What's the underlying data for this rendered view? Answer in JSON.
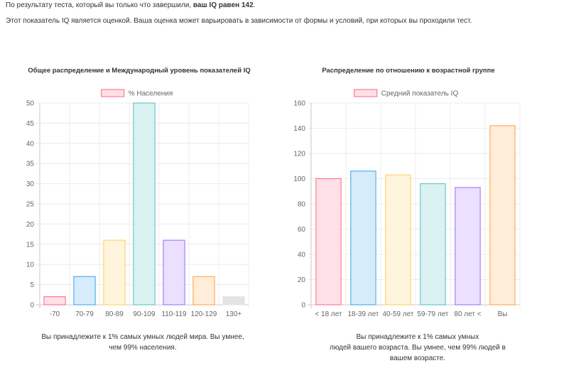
{
  "intro": {
    "line1_prefix": "По результату теста, который вы только что завершили, ",
    "line1_bold": "ваш IQ равен 142",
    "line1_suffix": ".",
    "line2": "Этот показатель IQ является оценкой. Ваша оценка может варьировать в зависимости от формы и условий, при которых вы проходили тест."
  },
  "captions": {
    "world": "Вы принадлежите к 1% самых умных людей мира. Вы умнее, чем 99% населения.",
    "age_line1": "Вы принадлежите к 1% самых умных",
    "age_line2": "людей вашего возраста. Вы умнее, чем 99% людей в",
    "age_line3": "вашем возрасте."
  },
  "chart_data": [
    {
      "type": "bar",
      "title": "Общее распределение и Международный уровень показателей IQ",
      "legend": "% Населения",
      "legend_position": "top",
      "categories": [
        "-70",
        "70-79",
        "80-89",
        "90-109",
        "110-119",
        "120-129",
        "130+"
      ],
      "values": [
        2,
        7,
        16,
        50,
        16,
        7,
        2
      ],
      "ylim": [
        0,
        50
      ],
      "yticks": [
        0,
        5,
        10,
        15,
        20,
        25,
        30,
        35,
        40,
        45,
        50
      ],
      "grid": true,
      "colors": {
        "fill": [
          "#ffe0e6",
          "#d7ecfb",
          "#fff4dc",
          "#dbf2f2",
          "#ebe0ff",
          "#ffecd9",
          "#e4e4e4"
        ],
        "stroke": [
          "#ff6384",
          "#36a2eb",
          "#ffce56",
          "#4bc0c0",
          "#9966ff",
          "#ff9f40",
          "#e4e4e4"
        ]
      }
    },
    {
      "type": "bar",
      "title": "Распределение по отношению к возрастной группе",
      "legend": "Средний показатель IQ",
      "legend_position": "top",
      "categories": [
        "< 18 лет",
        "18-39 лет",
        "40-59 лет",
        "59-79 лет",
        "80 лет <",
        "Вы"
      ],
      "values": [
        100,
        106,
        103,
        96,
        93,
        142
      ],
      "ylim": [
        0,
        160
      ],
      "yticks": [
        0,
        20,
        40,
        60,
        80,
        100,
        120,
        140,
        160
      ],
      "grid": true,
      "colors": {
        "fill": [
          "#ffe0e6",
          "#d7ecfb",
          "#fff4dc",
          "#dbf2f2",
          "#ebe0ff",
          "#ffecd9"
        ],
        "stroke": [
          "#ff6384",
          "#36a2eb",
          "#ffce56",
          "#4bc0c0",
          "#9966ff",
          "#ff9f40"
        ]
      }
    }
  ]
}
